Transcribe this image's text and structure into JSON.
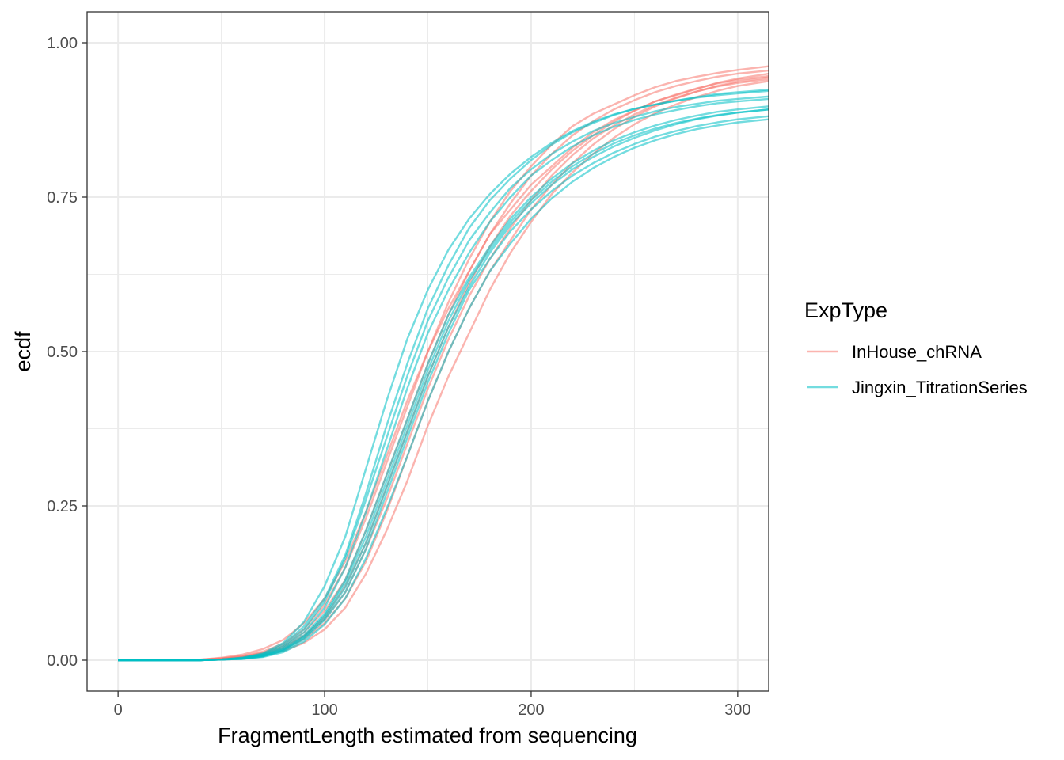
{
  "chart_data": {
    "type": "line",
    "xlabel": "FragmentLength estimated from sequencing",
    "ylabel": "ecdf",
    "xlim": [
      -15,
      315
    ],
    "ylim": [
      -0.05,
      1.05
    ],
    "x_ticks": [
      0,
      100,
      200,
      300
    ],
    "x_tick_labels": [
      "0",
      "100",
      "200",
      "300"
    ],
    "y_ticks": [
      0,
      0.25,
      0.5,
      0.75,
      1.0
    ],
    "y_tick_labels": [
      "0.00",
      "0.25",
      "0.50",
      "0.75",
      "1.00"
    ],
    "grid": true,
    "legend": {
      "title": "ExpType",
      "placement": "right",
      "entries": [
        {
          "label": "InHouse_chRNA",
          "color": "#F8766D"
        },
        {
          "label": "Jingxin_TitrationSeries",
          "color": "#00BFC4"
        }
      ]
    },
    "x": [
      0,
      25,
      40,
      50,
      60,
      70,
      80,
      90,
      100,
      110,
      120,
      130,
      140,
      150,
      160,
      170,
      180,
      190,
      200,
      210,
      220,
      230,
      240,
      250,
      260,
      270,
      280,
      290,
      300,
      315
    ],
    "series": [
      {
        "group": "InHouse_chRNA",
        "color": "#F8766D",
        "values": [
          0,
          0,
          0.001,
          0.004,
          0.009,
          0.018,
          0.033,
          0.06,
          0.1,
          0.16,
          0.24,
          0.33,
          0.42,
          0.5,
          0.57,
          0.63,
          0.69,
          0.73,
          0.77,
          0.8,
          0.83,
          0.855,
          0.875,
          0.89,
          0.905,
          0.915,
          0.925,
          0.935,
          0.942,
          0.95
        ]
      },
      {
        "group": "InHouse_chRNA",
        "color": "#F8766D",
        "values": [
          0,
          0,
          0.001,
          0.003,
          0.007,
          0.014,
          0.027,
          0.05,
          0.09,
          0.15,
          0.23,
          0.32,
          0.41,
          0.5,
          0.58,
          0.65,
          0.71,
          0.76,
          0.8,
          0.835,
          0.865,
          0.885,
          0.9,
          0.915,
          0.928,
          0.938,
          0.945,
          0.951,
          0.956,
          0.962
        ]
      },
      {
        "group": "InHouse_chRNA",
        "color": "#F8766D",
        "values": [
          0,
          0,
          0,
          0.002,
          0.005,
          0.011,
          0.022,
          0.04,
          0.07,
          0.12,
          0.19,
          0.28,
          0.37,
          0.46,
          0.54,
          0.61,
          0.67,
          0.72,
          0.76,
          0.795,
          0.825,
          0.85,
          0.872,
          0.89,
          0.905,
          0.916,
          0.926,
          0.934,
          0.94,
          0.946
        ]
      },
      {
        "group": "InHouse_chRNA",
        "color": "#F8766D",
        "values": [
          0,
          0,
          0,
          0.002,
          0.004,
          0.009,
          0.018,
          0.034,
          0.06,
          0.1,
          0.16,
          0.24,
          0.33,
          0.42,
          0.5,
          0.57,
          0.63,
          0.68,
          0.73,
          0.77,
          0.805,
          0.835,
          0.86,
          0.88,
          0.897,
          0.91,
          0.921,
          0.93,
          0.937,
          0.944
        ]
      },
      {
        "group": "InHouse_chRNA",
        "color": "#F8766D",
        "values": [
          0,
          0,
          0.001,
          0.003,
          0.006,
          0.012,
          0.024,
          0.045,
          0.08,
          0.13,
          0.21,
          0.3,
          0.39,
          0.48,
          0.56,
          0.63,
          0.69,
          0.74,
          0.785,
          0.82,
          0.85,
          0.873,
          0.892,
          0.907,
          0.92,
          0.93,
          0.938,
          0.945,
          0.95,
          0.955
        ]
      },
      {
        "group": "InHouse_chRNA",
        "color": "#F8766D",
        "values": [
          0,
          0,
          0,
          0.001,
          0.003,
          0.007,
          0.015,
          0.028,
          0.05,
          0.085,
          0.14,
          0.21,
          0.29,
          0.38,
          0.46,
          0.53,
          0.6,
          0.66,
          0.71,
          0.755,
          0.79,
          0.82,
          0.846,
          0.868,
          0.886,
          0.9,
          0.912,
          0.922,
          0.93,
          0.938
        ]
      },
      {
        "group": "InHouse_chRNA",
        "color": "#F8766D",
        "values": [
          0,
          0,
          0,
          0.002,
          0.005,
          0.01,
          0.02,
          0.038,
          0.066,
          0.11,
          0.18,
          0.26,
          0.35,
          0.44,
          0.52,
          0.59,
          0.65,
          0.7,
          0.745,
          0.785,
          0.818,
          0.845,
          0.866,
          0.884,
          0.899,
          0.911,
          0.921,
          0.929,
          0.935,
          0.941
        ]
      },
      {
        "group": "Jingxin_TitrationSeries",
        "color": "#00BFC4",
        "values": [
          0,
          0,
          0,
          0.001,
          0.004,
          0.01,
          0.025,
          0.055,
          0.1,
          0.17,
          0.27,
          0.38,
          0.48,
          0.57,
          0.64,
          0.7,
          0.745,
          0.78,
          0.81,
          0.835,
          0.855,
          0.87,
          0.883,
          0.893,
          0.9,
          0.906,
          0.912,
          0.917,
          0.92,
          0.924
        ]
      },
      {
        "group": "Jingxin_TitrationSeries",
        "color": "#00BFC4",
        "values": [
          0,
          0,
          0,
          0.001,
          0.004,
          0.011,
          0.028,
          0.062,
          0.12,
          0.2,
          0.31,
          0.42,
          0.52,
          0.6,
          0.665,
          0.715,
          0.755,
          0.788,
          0.815,
          0.838,
          0.857,
          0.872,
          0.884,
          0.893,
          0.9,
          0.906,
          0.911,
          0.915,
          0.918,
          0.922
        ]
      },
      {
        "group": "Jingxin_TitrationSeries",
        "color": "#00BFC4",
        "values": [
          0,
          0,
          0,
          0.001,
          0.003,
          0.008,
          0.02,
          0.045,
          0.085,
          0.15,
          0.24,
          0.34,
          0.44,
          0.53,
          0.6,
          0.66,
          0.71,
          0.75,
          0.785,
          0.81,
          0.832,
          0.85,
          0.864,
          0.875,
          0.884,
          0.891,
          0.897,
          0.902,
          0.905,
          0.909
        ]
      },
      {
        "group": "Jingxin_TitrationSeries",
        "color": "#00BFC4",
        "values": [
          0,
          0,
          0,
          0.001,
          0.003,
          0.008,
          0.018,
          0.04,
          0.075,
          0.13,
          0.21,
          0.3,
          0.39,
          0.48,
          0.56,
          0.62,
          0.67,
          0.715,
          0.75,
          0.78,
          0.805,
          0.825,
          0.842,
          0.855,
          0.866,
          0.875,
          0.882,
          0.888,
          0.892,
          0.897
        ]
      },
      {
        "group": "Jingxin_TitrationSeries",
        "color": "#00BFC4",
        "values": [
          0,
          0,
          0,
          0.001,
          0.002,
          0.006,
          0.015,
          0.034,
          0.065,
          0.11,
          0.18,
          0.27,
          0.36,
          0.45,
          0.53,
          0.6,
          0.65,
          0.695,
          0.73,
          0.76,
          0.785,
          0.805,
          0.822,
          0.836,
          0.848,
          0.857,
          0.865,
          0.871,
          0.876,
          0.881
        ]
      },
      {
        "group": "Jingxin_TitrationSeries",
        "color": "#00BFC4",
        "values": [
          0,
          0,
          0,
          0.001,
          0.002,
          0.005,
          0.013,
          0.03,
          0.058,
          0.1,
          0.165,
          0.245,
          0.33,
          0.42,
          0.5,
          0.57,
          0.63,
          0.675,
          0.715,
          0.748,
          0.775,
          0.797,
          0.815,
          0.83,
          0.842,
          0.852,
          0.86,
          0.866,
          0.871,
          0.876
        ]
      },
      {
        "group": "Jingxin_TitrationSeries",
        "color": "#00BFC4",
        "values": [
          0,
          0,
          0,
          0.001,
          0.003,
          0.009,
          0.022,
          0.05,
          0.095,
          0.165,
          0.26,
          0.36,
          0.46,
          0.55,
          0.62,
          0.68,
          0.725,
          0.765,
          0.795,
          0.82,
          0.84,
          0.857,
          0.87,
          0.88,
          0.889,
          0.896,
          0.901,
          0.906,
          0.909,
          0.913
        ]
      },
      {
        "group": "Jingxin_TitrationSeries",
        "color": "#00BFC4",
        "values": [
          0,
          0,
          0,
          0.001,
          0.003,
          0.007,
          0.017,
          0.038,
          0.072,
          0.125,
          0.2,
          0.29,
          0.38,
          0.47,
          0.55,
          0.615,
          0.665,
          0.71,
          0.745,
          0.775,
          0.8,
          0.82,
          0.837,
          0.85,
          0.861,
          0.87,
          0.877,
          0.883,
          0.887,
          0.892
        ]
      },
      {
        "group": "Jingxin_TitrationSeries",
        "color": "#00BFC4",
        "values": [
          0,
          0,
          0,
          0.001,
          0.002,
          0.006,
          0.016,
          0.036,
          0.068,
          0.118,
          0.19,
          0.28,
          0.37,
          0.46,
          0.54,
          0.605,
          0.66,
          0.705,
          0.74,
          0.77,
          0.795,
          0.815,
          0.832,
          0.846,
          0.858,
          0.868,
          0.876,
          0.882,
          0.887,
          0.892
        ]
      }
    ]
  }
}
